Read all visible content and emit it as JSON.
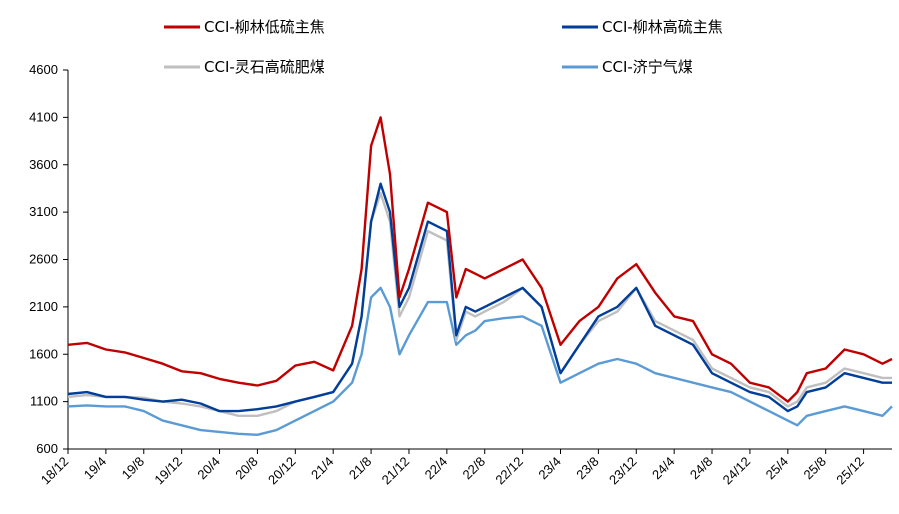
{
  "chart_data": {
    "type": "line",
    "title": "",
    "xlabel": "",
    "ylabel": "",
    "ylim": [
      600,
      4600
    ],
    "yticks": [
      600,
      1100,
      1600,
      2100,
      2600,
      3100,
      3600,
      4100,
      4600
    ],
    "grid": false,
    "legend_position": "top",
    "categories": [
      "18/12",
      "19/4",
      "19/8",
      "19/12",
      "20/4",
      "20/8",
      "20/12",
      "21/4",
      "21/8",
      "21/12",
      "22/4",
      "22/8",
      "22/12",
      "23/4",
      "23/8",
      "23/12",
      "24/4",
      "24/8",
      "24/12",
      "25/4",
      "25/8",
      "25/12"
    ],
    "x": [
      "18/12",
      "19/2",
      "19/4",
      "19/6",
      "19/8",
      "19/10",
      "19/12",
      "20/2",
      "20/4",
      "20/6",
      "20/8",
      "20/10",
      "20/12",
      "21/2",
      "21/4",
      "21/6",
      "21/7",
      "21/8",
      "21/9",
      "21/10",
      "21/11",
      "21/12",
      "22/2",
      "22/4",
      "22/5",
      "22/6",
      "22/7",
      "22/8",
      "22/10",
      "22/12",
      "23/2",
      "23/4",
      "23/6",
      "23/8",
      "23/10",
      "23/12",
      "24/2",
      "24/4",
      "24/6",
      "24/8",
      "24/10",
      "24/12",
      "25/2",
      "25/4",
      "25/5",
      "25/6",
      "25/8",
      "25/10",
      "25/12",
      "26/2",
      "26/3"
    ],
    "series": [
      {
        "name": "CCI-柳林低硫主焦",
        "color": "#C00000",
        "values": [
          1700,
          1720,
          1650,
          1620,
          1560,
          1500,
          1420,
          1400,
          1340,
          1300,
          1270,
          1320,
          1480,
          1520,
          1430,
          1900,
          2500,
          3800,
          4100,
          3500,
          2200,
          2500,
          3200,
          3100,
          2200,
          2500,
          2450,
          2400,
          2500,
          2600,
          2300,
          1700,
          1950,
          2100,
          2400,
          2550,
          2250,
          2000,
          1950,
          1600,
          1500,
          1300,
          1250,
          1100,
          1200,
          1400,
          1450,
          1650,
          1600,
          1500,
          1550
        ]
      },
      {
        "name": "CCI-柳林高硫主焦",
        "color": "#003E99",
        "values": [
          1180,
          1200,
          1150,
          1150,
          1120,
          1100,
          1120,
          1080,
          1000,
          1000,
          1020,
          1050,
          1100,
          1150,
          1200,
          1500,
          2000,
          3000,
          3400,
          3100,
          2100,
          2300,
          3000,
          2900,
          1800,
          2100,
          2050,
          2100,
          2200,
          2300,
          2100,
          1400,
          1700,
          2000,
          2100,
          2300,
          1900,
          1800,
          1700,
          1400,
          1300,
          1200,
          1150,
          1000,
          1050,
          1200,
          1250,
          1400,
          1350,
          1300,
          1300
        ]
      },
      {
        "name": "CCI-灵石高硫肥煤",
        "color": "#BFBFBF",
        "values": [
          1150,
          1170,
          1150,
          1150,
          1140,
          1100,
          1080,
          1050,
          1000,
          950,
          950,
          1000,
          1100,
          1150,
          1200,
          1500,
          2000,
          3000,
          3300,
          3000,
          2000,
          2200,
          2900,
          2800,
          1750,
          2050,
          2000,
          2050,
          2150,
          2300,
          2100,
          1400,
          1700,
          1950,
          2050,
          2300,
          1950,
          1850,
          1750,
          1450,
          1350,
          1250,
          1200,
          1050,
          1100,
          1250,
          1300,
          1450,
          1400,
          1350,
          1350
        ]
      },
      {
        "name": "CCI-济宁气煤",
        "color": "#5B9BD5",
        "values": [
          1050,
          1060,
          1050,
          1050,
          1000,
          900,
          850,
          800,
          780,
          760,
          750,
          800,
          900,
          1000,
          1100,
          1300,
          1600,
          2200,
          2300,
          2100,
          1600,
          1800,
          2150,
          2150,
          1700,
          1800,
          1850,
          1950,
          1980,
          2000,
          1900,
          1300,
          1400,
          1500,
          1550,
          1500,
          1400,
          1350,
          1300,
          1250,
          1200,
          1100,
          1000,
          900,
          850,
          950,
          1000,
          1050,
          1000,
          950,
          1050
        ]
      }
    ]
  }
}
